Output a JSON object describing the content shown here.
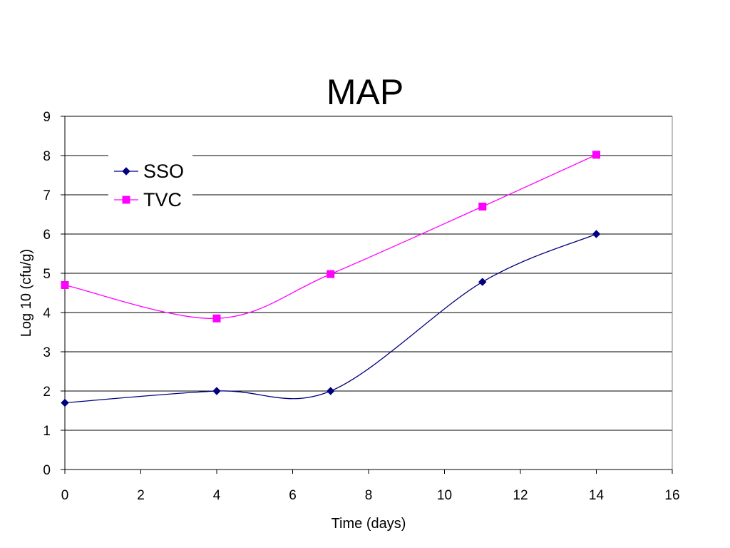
{
  "chart_data": {
    "type": "line",
    "title": "MAP",
    "xlabel": "Time (days)",
    "ylabel": "Log 10 (cfu/g)",
    "xlim": [
      0,
      16
    ],
    "ylim": [
      0,
      9
    ],
    "xticks": [
      0,
      2,
      4,
      6,
      8,
      10,
      12,
      14,
      16
    ],
    "yticks": [
      0,
      1,
      2,
      3,
      4,
      5,
      6,
      7,
      8,
      9
    ],
    "grid": "horizontal",
    "smoothed": true,
    "legend_position": "top-left",
    "series": [
      {
        "name": "SSO",
        "color": "#000080",
        "marker": "diamond",
        "x": [
          0,
          4,
          7,
          11,
          14
        ],
        "y": [
          1.7,
          2.0,
          2.0,
          4.78,
          6.0
        ]
      },
      {
        "name": "TVC",
        "color": "#FF00FF",
        "marker": "square",
        "x": [
          0,
          4,
          7,
          11,
          14
        ],
        "y": [
          4.7,
          3.85,
          4.98,
          6.7,
          8.02
        ]
      }
    ]
  }
}
